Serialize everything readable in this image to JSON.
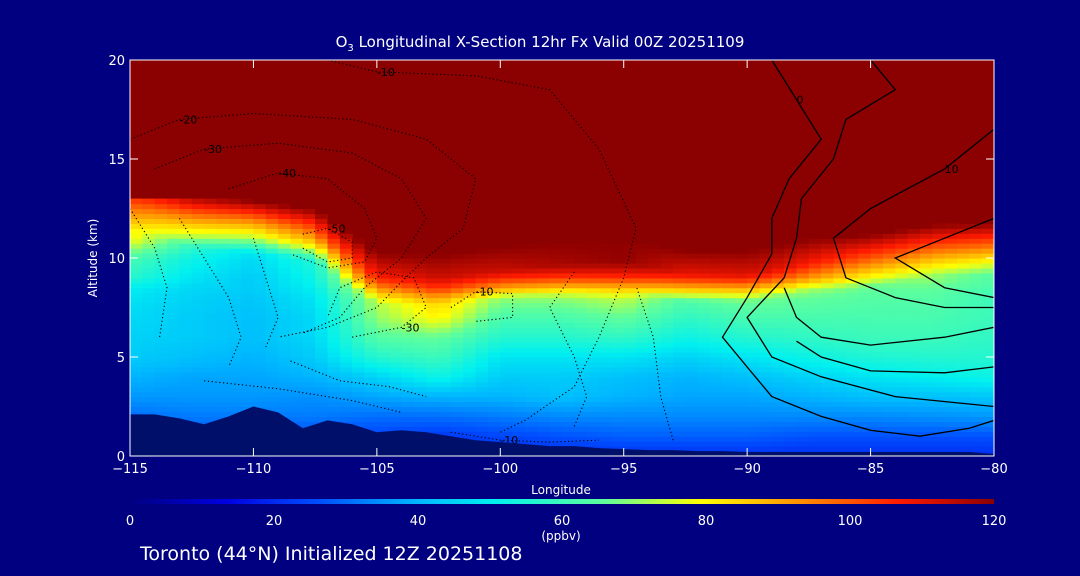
{
  "title": {
    "species": "O",
    "species_sub": "3",
    "text": " Longitudinal X-Section 12hr  Fx Valid 00Z 20251109"
  },
  "footer": "Toronto (44°N) Initialized 12Z 20251108",
  "colors": {
    "background": "#000080",
    "axis": "#ffffff",
    "terrain": "#00106a",
    "above_cap": "#8b0000"
  },
  "chart_data": {
    "type": "heatmap",
    "xlabel": "Longitude",
    "ylabel": "Altitude (km)",
    "xlim": [
      -115,
      -80
    ],
    "ylim": [
      0,
      20
    ],
    "xticks": [
      -115,
      -110,
      -105,
      -100,
      -95,
      -90,
      -85,
      -80
    ],
    "xtick_labels": [
      "−115",
      "−110",
      "−105",
      "−100",
      "−95",
      "−90",
      "−85",
      "−80"
    ],
    "yticks": [
      0,
      5,
      10,
      15,
      20
    ],
    "ytick_labels": [
      "0",
      "5",
      "10",
      "15",
      "20"
    ],
    "colorbar": {
      "label": "(ppbv)",
      "range": [
        0,
        120
      ],
      "ticks": [
        0,
        20,
        40,
        60,
        80,
        100,
        120
      ],
      "tick_labels": [
        "0",
        "20",
        "40",
        "60",
        "80",
        "100",
        "120"
      ]
    },
    "ozone_field": {
      "x": [
        -115,
        -112.5,
        -110,
        -107.5,
        -105,
        -102.5,
        -100,
        -97.5,
        -95,
        -92.5,
        -90,
        -87.5,
        -85,
        -82.5,
        -80
      ],
      "tropopause_km": [
        12.8,
        12.0,
        11.7,
        11.3,
        9.1,
        9.0,
        9.4,
        9.7,
        9.9,
        9.2,
        9.2,
        9.8,
        10.0,
        10.5,
        10.6
      ],
      "ozone_above_tropopause_ppbv": 120,
      "ozone_below_tropopause_ppbv": [
        [
          20,
          20,
          20,
          20,
          20,
          20,
          20,
          20,
          20,
          20,
          20,
          20,
          20,
          20,
          20
        ],
        [
          26,
          26,
          25,
          25,
          24,
          22,
          24,
          26,
          28,
          28,
          28,
          26,
          26,
          26,
          26
        ],
        [
          30,
          32,
          32,
          32,
          30,
          30,
          32,
          34,
          34,
          34,
          34,
          34,
          34,
          35,
          36
        ],
        [
          36,
          36,
          36,
          35,
          38,
          40,
          40,
          42,
          40,
          38,
          38,
          40,
          42,
          42,
          43
        ],
        [
          40,
          38,
          38,
          40,
          45,
          52,
          44,
          44,
          42,
          40,
          42,
          45,
          48,
          50,
          52
        ],
        [
          44,
          42,
          40,
          44,
          56,
          60,
          48,
          48,
          48,
          45,
          48,
          52,
          55,
          56,
          56
        ],
        [
          45,
          44,
          42,
          46,
          64,
          66,
          56,
          56,
          58,
          52,
          56,
          58,
          60,
          60,
          58
        ],
        [
          46,
          44,
          42,
          46,
          70,
          80,
          62,
          62,
          66,
          58,
          62,
          62,
          62,
          62,
          60
        ],
        [
          48,
          45,
          43,
          48,
          74,
          86,
          70,
          70,
          74,
          64,
          68,
          66,
          64,
          64,
          60
        ],
        [
          50,
          46,
          44,
          50,
          82,
          96,
          84,
          84,
          88,
          78,
          80,
          72,
          66,
          66,
          62
        ],
        [
          56,
          48,
          44,
          52,
          92,
          104,
          96,
          96,
          100,
          92,
          96,
          84,
          70,
          70,
          64
        ],
        [
          62,
          52,
          46,
          56,
          100,
          120,
          120,
          120,
          120,
          120,
          120,
          96,
          76,
          72,
          66
        ],
        [
          80,
          62,
          54,
          70,
          110,
          120,
          120,
          120,
          120,
          120,
          120,
          110,
          84,
          78,
          72
        ]
      ],
      "altitudes_km": [
        0,
        1,
        2,
        3,
        4,
        5,
        6,
        7,
        8,
        8.5,
        9,
        10,
        11
      ]
    },
    "terrain_km": {
      "x": [
        -115,
        -114,
        -113,
        -112,
        -111,
        -110,
        -109,
        -108,
        -107,
        -106,
        -105,
        -104,
        -103,
        -102,
        -101,
        -100,
        -99,
        -98,
        -97,
        -96,
        -95,
        -94,
        -93,
        -92,
        -91,
        -90,
        -89,
        -88,
        -87,
        -86,
        -85,
        -84,
        -83,
        -82,
        -81,
        -80
      ],
      "y": [
        2.1,
        2.1,
        1.9,
        1.6,
        2.0,
        2.5,
        2.2,
        1.4,
        1.8,
        1.6,
        1.2,
        1.3,
        1.2,
        1.0,
        0.8,
        0.7,
        0.6,
        0.5,
        0.5,
        0.4,
        0.35,
        0.3,
        0.3,
        0.25,
        0.25,
        0.2,
        0.2,
        0.2,
        0.2,
        0.2,
        0.2,
        0.2,
        0.2,
        0.2,
        0.2,
        0.1
      ]
    },
    "contours": [
      {
        "style": "solid",
        "label": "0",
        "points": [
          [
            -89,
            20
          ],
          [
            -88,
            18
          ],
          [
            -87,
            16
          ],
          [
            -88.3,
            14
          ],
          [
            -89,
            12
          ],
          [
            -89,
            10.2
          ],
          [
            -90,
            8
          ],
          [
            -91,
            6
          ],
          [
            -90,
            4.5
          ],
          [
            -89,
            3
          ],
          [
            -87,
            2
          ],
          [
            -85,
            1.3
          ],
          [
            -83,
            1
          ],
          [
            -81,
            1.4
          ],
          [
            -80,
            1.8
          ]
        ]
      },
      {
        "style": "solid",
        "points": [
          [
            -85,
            20
          ],
          [
            -84,
            18.5
          ],
          [
            -86,
            17
          ],
          [
            -86.5,
            15
          ],
          [
            -87.8,
            13
          ],
          [
            -88,
            11
          ],
          [
            -88.5,
            9
          ],
          [
            -90,
            7
          ],
          [
            -89,
            5
          ],
          [
            -87,
            4
          ],
          [
            -84,
            3
          ],
          [
            -80,
            2.5
          ]
        ]
      },
      {
        "style": "solid",
        "label": "10",
        "points": [
          [
            -80,
            16.5
          ],
          [
            -82,
            14.5
          ],
          [
            -85,
            12.5
          ],
          [
            -86.5,
            11
          ],
          [
            -86,
            9
          ],
          [
            -84,
            8
          ],
          [
            -82,
            7.5
          ],
          [
            -80,
            7.5
          ]
        ]
      },
      {
        "style": "solid",
        "points": [
          [
            -80,
            12
          ],
          [
            -82,
            11
          ],
          [
            -84,
            10
          ],
          [
            -82,
            8.5
          ],
          [
            -80,
            8
          ]
        ]
      },
      {
        "style": "solid",
        "points": [
          [
            -80,
            6.5
          ],
          [
            -82,
            6
          ],
          [
            -85,
            5.6
          ],
          [
            -87,
            6
          ],
          [
            -88,
            7
          ],
          [
            -88.5,
            8.5
          ]
        ]
      },
      {
        "style": "solid",
        "points": [
          [
            -80,
            4.5
          ],
          [
            -82,
            4.2
          ],
          [
            -85,
            4.3
          ],
          [
            -87,
            5
          ],
          [
            -88,
            5.8
          ]
        ]
      },
      {
        "style": "dotted",
        "label": "-10",
        "points": [
          [
            -107,
            20
          ],
          [
            -105,
            19.4
          ],
          [
            -101,
            19.2
          ],
          [
            -98,
            18.5
          ],
          [
            -96,
            15.5
          ],
          [
            -94.5,
            11.5
          ],
          [
            -95,
            9
          ],
          [
            -96,
            6
          ],
          [
            -97,
            3.5
          ],
          [
            -99,
            1.8
          ],
          [
            -100,
            1.2
          ]
        ]
      },
      {
        "style": "dotted",
        "label": "-20",
        "points": [
          [
            -115,
            16
          ],
          [
            -113,
            17
          ],
          [
            -110,
            17.3
          ],
          [
            -106,
            17
          ],
          [
            -103,
            16
          ],
          [
            -101,
            14
          ],
          [
            -101.5,
            11.5
          ],
          [
            -103,
            10
          ],
          [
            -104,
            8.8
          ],
          [
            -105,
            7.5
          ],
          [
            -107,
            6.5
          ],
          [
            -109,
            6
          ]
        ]
      },
      {
        "style": "dotted",
        "label": "-30",
        "points": [
          [
            -114,
            14.5
          ],
          [
            -112,
            15.5
          ],
          [
            -109,
            15.8
          ],
          [
            -106,
            15.3
          ],
          [
            -104,
            14
          ],
          [
            -103,
            12
          ],
          [
            -104,
            10
          ],
          [
            -105.5,
            8.5
          ],
          [
            -106.5,
            7
          ],
          [
            -108,
            6.2
          ]
        ]
      },
      {
        "style": "dotted",
        "label": "-40",
        "points": [
          [
            -111,
            13.5
          ],
          [
            -109,
            14.3
          ],
          [
            -107,
            14
          ],
          [
            -105.5,
            12.5
          ],
          [
            -105,
            11
          ],
          [
            -105.5,
            9.8
          ],
          [
            -107,
            9.5
          ],
          [
            -108.5,
            10.2
          ]
        ]
      },
      {
        "style": "dotted",
        "label": "-50",
        "points": [
          [
            -108,
            11.2
          ],
          [
            -107,
            11.5
          ],
          [
            -106,
            10.8
          ],
          [
            -106,
            10
          ],
          [
            -107,
            9.8
          ],
          [
            -108,
            10.5
          ]
        ]
      },
      {
        "style": "dotted",
        "label": "-30",
        "points": [
          [
            -106,
            6
          ],
          [
            -104,
            6.5
          ],
          [
            -103,
            7.5
          ],
          [
            -103.5,
            9
          ],
          [
            -105,
            9.3
          ],
          [
            -106.5,
            8.5
          ],
          [
            -107,
            7
          ]
        ]
      },
      {
        "style": "dotted",
        "label": "-10",
        "points": [
          [
            -102,
            7.5
          ],
          [
            -101,
            8.3
          ],
          [
            -99.5,
            8.2
          ],
          [
            -99.5,
            7
          ],
          [
            -101,
            6.8
          ]
        ]
      },
      {
        "style": "dotted",
        "points": [
          [
            -113,
            12
          ],
          [
            -112,
            10
          ],
          [
            -111,
            8
          ],
          [
            -110.5,
            6
          ],
          [
            -111,
            4.5
          ]
        ]
      },
      {
        "style": "dotted",
        "points": [
          [
            -115,
            12.5
          ],
          [
            -114,
            10.5
          ],
          [
            -113.5,
            8.5
          ],
          [
            -113.8,
            6
          ]
        ]
      },
      {
        "style": "dotted",
        "points": [
          [
            -110,
            11
          ],
          [
            -109.5,
            9
          ],
          [
            -109,
            7
          ],
          [
            -109.5,
            5.5
          ]
        ]
      },
      {
        "style": "dotted",
        "points": [
          [
            -108.5,
            4.8
          ],
          [
            -106.5,
            3.8
          ],
          [
            -104.5,
            3.5
          ],
          [
            -103,
            3
          ]
        ]
      },
      {
        "style": "dotted",
        "points": [
          [
            -112,
            3.8
          ],
          [
            -109,
            3.4
          ],
          [
            -106,
            2.8
          ],
          [
            -104,
            2.2
          ]
        ]
      },
      {
        "style": "dotted",
        "points": [
          [
            -97,
            1.5
          ],
          [
            -96.5,
            3
          ],
          [
            -97,
            5
          ],
          [
            -98,
            7.5
          ],
          [
            -97,
            9.3
          ]
        ]
      },
      {
        "style": "dotted",
        "points": [
          [
            -93,
            0.8
          ],
          [
            -93.5,
            3
          ],
          [
            -93.8,
            6
          ],
          [
            -94.5,
            8.6
          ]
        ]
      },
      {
        "style": "dotted",
        "label": "-10",
        "points": [
          [
            -102,
            1.2
          ],
          [
            -100,
            0.8
          ],
          [
            -98,
            0.7
          ],
          [
            -96,
            0.8
          ]
        ]
      }
    ]
  }
}
